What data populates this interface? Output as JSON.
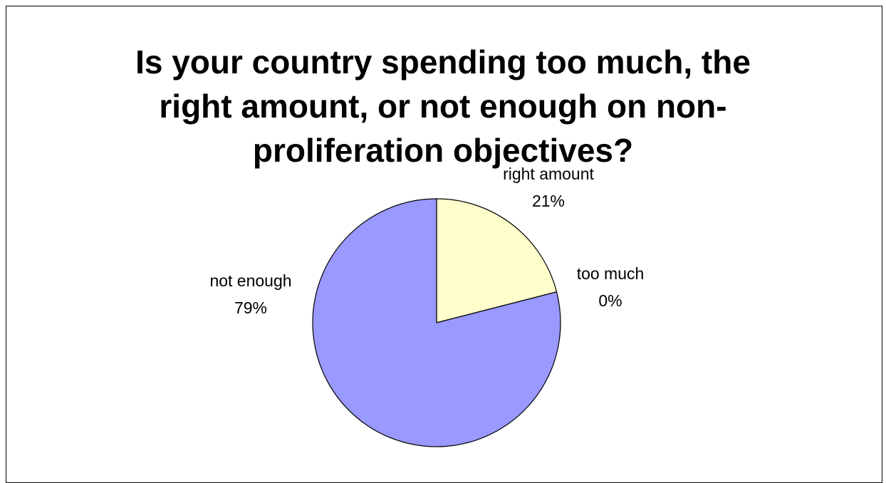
{
  "chart_data": {
    "type": "pie",
    "title": "Is your country spending too much, the right amount, or not enough on non-proliferation objectives?",
    "title_lines": [
      "Is your country spending too much, the",
      "right amount, or not enough on non-",
      "proliferation objectives?"
    ],
    "slices": [
      {
        "label": "right amount",
        "value": 21,
        "value_label": "21%",
        "color": "#ffffcc"
      },
      {
        "label": "too much",
        "value": 0,
        "value_label": "0%",
        "color": "#993366"
      },
      {
        "label": "not enough",
        "value": 79,
        "value_label": "79%",
        "color": "#9999ff"
      }
    ],
    "start_angle": "12 o'clock",
    "direction": "clockwise",
    "outline_color": "#000000",
    "legend": "none"
  }
}
